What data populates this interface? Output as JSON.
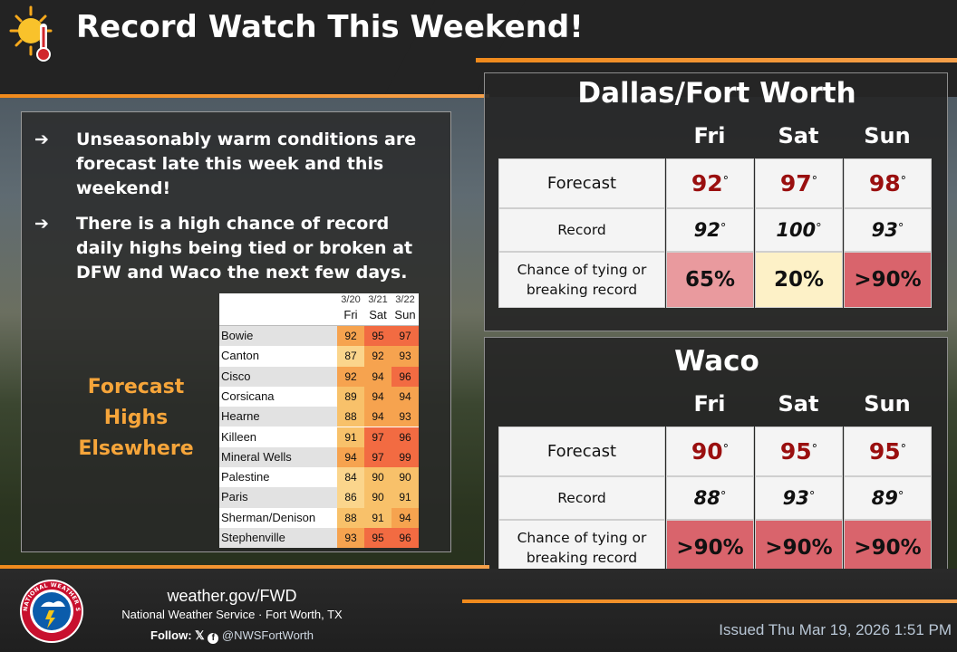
{
  "header": {
    "title": "Record Watch This Weekend!",
    "icon": "sun-thermometer-icon"
  },
  "bullets": [
    {
      "arrow": "➔",
      "text": "Unseasonably warm conditions are forecast late this week and this weekend!"
    },
    {
      "arrow": "➔",
      "text": "There is a high chance of record daily highs being tied or broken at DFW and Waco the next few days."
    }
  ],
  "forecast_highs_label": [
    "Forecast",
    "Highs",
    "Elsewhere"
  ],
  "elsewhere_table": {
    "dates": [
      "3/20",
      "3/21",
      "3/22"
    ],
    "days": [
      "Fri",
      "Sat",
      "Sun"
    ],
    "rows": [
      {
        "name": "Bowie",
        "values": [
          "92",
          "95",
          "97"
        ]
      },
      {
        "name": "Canton",
        "values": [
          "87",
          "92",
          "93"
        ]
      },
      {
        "name": "Cisco",
        "values": [
          "92",
          "94",
          "96"
        ]
      },
      {
        "name": "Corsicana",
        "values": [
          "89",
          "94",
          "94"
        ]
      },
      {
        "name": "Hearne",
        "values": [
          "88",
          "94",
          "93"
        ]
      },
      {
        "name": "Killeen",
        "values": [
          "91",
          "97",
          "96"
        ]
      },
      {
        "name": "Mineral Wells",
        "values": [
          "94",
          "97",
          "99"
        ]
      },
      {
        "name": "Palestine",
        "values": [
          "84",
          "90",
          "90"
        ]
      },
      {
        "name": "Paris",
        "values": [
          "86",
          "90",
          "91"
        ]
      },
      {
        "name": "Sherman/Denison",
        "values": [
          "88",
          "91",
          "94"
        ]
      },
      {
        "name": "Stephenville",
        "values": [
          "93",
          "95",
          "96"
        ]
      }
    ]
  },
  "dfw": {
    "title": "Dallas/Fort Worth",
    "days": [
      "Fri",
      "Sat",
      "Sun"
    ],
    "forecast_label": "Forecast",
    "record_label": "Record",
    "chance_label": "Chance of tying or breaking record",
    "forecast": [
      "92",
      "97",
      "98"
    ],
    "record": [
      "92",
      "100",
      "93"
    ],
    "chance": [
      "65%",
      "20%",
      ">90%"
    ],
    "chance_colors": [
      "#e99a9e",
      "#fdf1c7",
      "#d9646c"
    ]
  },
  "waco": {
    "title": "Waco",
    "days": [
      "Fri",
      "Sat",
      "Sun"
    ],
    "forecast_label": "Forecast",
    "record_label": "Record",
    "chance_label": "Chance of tying or breaking record",
    "forecast": [
      "90",
      "95",
      "95"
    ],
    "record": [
      "88",
      "93",
      "89"
    ],
    "chance": [
      ">90%",
      ">90%",
      ">90%"
    ],
    "chance_colors": [
      "#d9646c",
      "#d9646c",
      "#d9646c"
    ]
  },
  "degree_symbol": "°",
  "footer": {
    "site": "weather.gov/FWD",
    "office": "National Weather Service · Fort Worth, TX",
    "follow_label": "Follow:",
    "handle": "@NWSFortWorth",
    "issued": "Issued Thu Mar 19, 2026 1:51 PM",
    "logo_text": "NATIONAL WEATHER SERVICE"
  }
}
